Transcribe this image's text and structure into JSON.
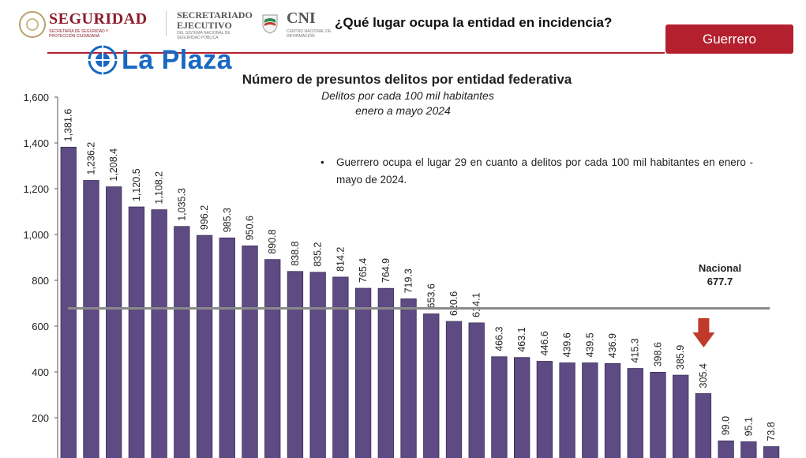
{
  "header": {
    "seguridad_title": "SEGURIDAD",
    "seguridad_sub": "SECRETARÍA DE SEGURIDAD Y PROTECCIÓN CIUDADANA",
    "sesnsp_title_line1": "SECRETARIADO",
    "sesnsp_title_line2": "EJECUTIVO",
    "sesnsp_sub": "DEL SISTEMA NACIONAL DE SEGURIDAD PÚBLICA",
    "cni_title": "CNI",
    "cni_sub": "CENTRO NACIONAL DE INFORMACIÓN",
    "question": "¿Qué lugar ocupa la entidad en incidencia?",
    "state_button": "Guerrero"
  },
  "watermark": {
    "text": "La Plaza",
    "color": "#1768c2"
  },
  "colors": {
    "bar": "#5e4b84",
    "bar_stroke": "#3c2f57",
    "accent": "#b5202f",
    "national_line": "#8a8a8a",
    "arrow": "#c0392b"
  },
  "annotation": {
    "text": "Guerrero ocupa el lugar 29 en cuanto a delitos por cada 100 mil habitantes en enero - mayo de 2024."
  },
  "national": {
    "label": "Nacional",
    "value_label": "677.7"
  },
  "chart_data": {
    "type": "bar",
    "title": "Número  de presuntos delitos por entidad federativa",
    "subtitle_1": "Delitos por cada 100 mil habitantes",
    "subtitle_2": "enero a mayo 2024",
    "xlabel": "",
    "ylabel": "",
    "ylim": [
      0,
      1600
    ],
    "yticks": [
      200,
      400,
      600,
      800,
      1000,
      1200,
      1400,
      1600
    ],
    "ytick_labels": [
      "200",
      "400",
      "600",
      "800",
      "1,000",
      "1,200",
      "1,400",
      "1,600"
    ],
    "values": [
      1381.6,
      1236.2,
      1208.4,
      1120.5,
      1108.2,
      1035.3,
      996.2,
      985.3,
      950.6,
      890.8,
      838.8,
      835.2,
      814.2,
      765.4,
      764.9,
      719.3,
      653.6,
      620.6,
      614.1,
      466.3,
      463.1,
      446.6,
      439.6,
      439.5,
      436.9,
      415.3,
      398.6,
      385.9,
      305.4,
      99.0,
      95.1,
      73.8
    ],
    "value_labels": [
      "1,381.6",
      "1,236.2",
      "1,208.4",
      "1,120.5",
      "1,108.2",
      "1,035.3",
      "996.2",
      "985.3",
      "950.6",
      "890.8",
      "838.8",
      "835.2",
      "814.2",
      "765.4",
      "764.9",
      "719.3",
      "653.6",
      "620.6",
      "614.1",
      "466.3",
      "463.1",
      "446.6",
      "439.6",
      "439.5",
      "436.9",
      "415.3",
      "398.6",
      "385.9",
      "305.4",
      "99.0",
      "95.1",
      "73.8"
    ],
    "highlight_index": 28,
    "national_average": 677.7,
    "grid": false,
    "legend": "none"
  }
}
